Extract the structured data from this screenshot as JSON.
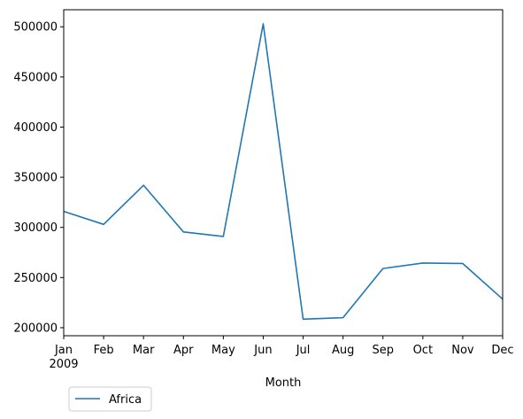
{
  "chart_data": {
    "type": "line",
    "title": "",
    "xlabel": "Month",
    "ylabel": "",
    "x": [
      "Jan",
      "Feb",
      "Mar",
      "Apr",
      "May",
      "Jun",
      "Jul",
      "Aug",
      "Sep",
      "Oct",
      "Nov",
      "Dec"
    ],
    "x_year_label": "2009",
    "series": [
      {
        "name": "Africa",
        "color": "#1f77b4",
        "values": [
          316000,
          303000,
          342000,
          295500,
          291000,
          503000,
          208500,
          210000,
          259000,
          264500,
          264000,
          228500
        ]
      }
    ],
    "ylim": [
      192000,
      517000
    ],
    "yticks": [
      200000,
      250000,
      300000,
      350000,
      400000,
      450000,
      500000
    ],
    "ytick_labels": [
      "200000",
      "250000",
      "300000",
      "350000",
      "400000",
      "450000",
      "500000"
    ],
    "grid": false,
    "legend_position": "bottom-left"
  }
}
